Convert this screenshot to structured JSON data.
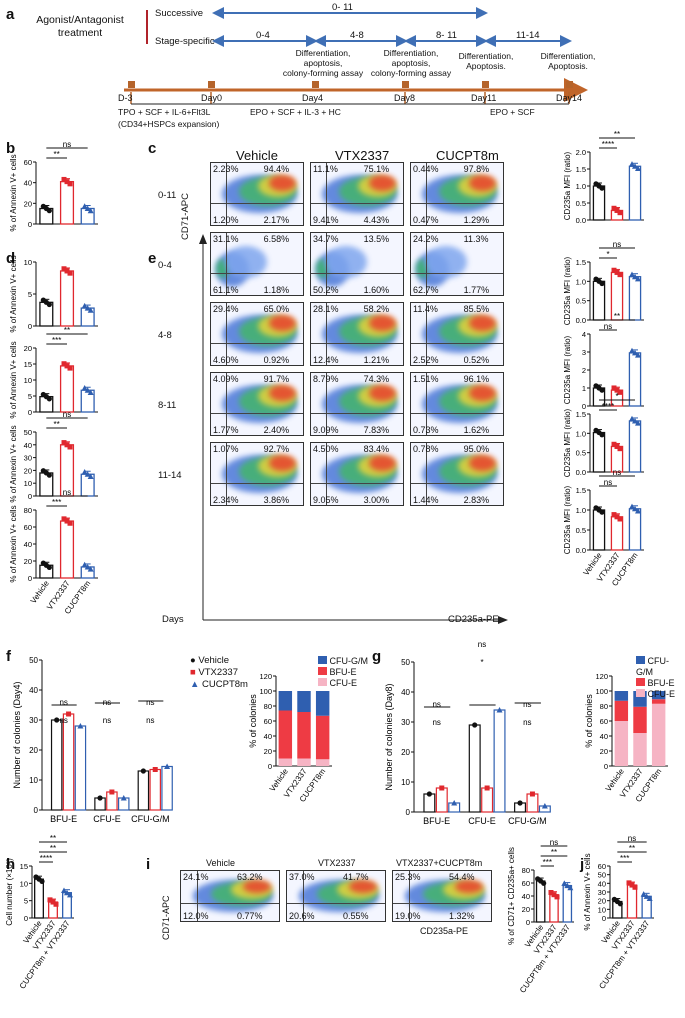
{
  "panels": {
    "a": "a",
    "b": "b",
    "c": "c",
    "d": "d",
    "e": "e",
    "f": "f",
    "g": "g",
    "h": "h",
    "i": "i",
    "j": "j"
  },
  "timeline": {
    "treatment_label": "Agonist/Antagonist treatment",
    "successive": "Successive",
    "stage_specific": "Stage-specific",
    "range_successive": "0- 11",
    "ranges": [
      "0-4",
      "4-8",
      "8- 11",
      "11-14"
    ],
    "day_labels": [
      "D-3",
      "Day0",
      "Day4",
      "Day8",
      "Day11",
      "Day14"
    ],
    "annotations": [
      "Differentiation,\napoptosis,\ncolony-forming assay",
      "Differentiation,\napoptosis,\ncolony-forming assay",
      "Differentiation,\nApoptosis.",
      "Differentiation,\nApoptosis."
    ],
    "media": [
      "TPO + SCF + IL-6+Flt3L",
      "(CD34+HSPCs expansion)",
      "EPO + SCF + IL-3 + HC",
      "EPO + SCF"
    ]
  },
  "flow": {
    "col_headers": [
      "Vehicle",
      "VTX2337",
      "CUCPT8m"
    ],
    "rows": [
      {
        "label": "0-11",
        "q": [
          [
            "2.23%",
            "94.4%",
            "1.20%",
            "2.17%"
          ],
          [
            "11.1%",
            "75.1%",
            "9.41%",
            "4.43%"
          ],
          [
            "0.44%",
            "97.8%",
            "0.47%",
            "1.29%"
          ]
        ]
      },
      {
        "label": "0-4",
        "q": [
          [
            "31.1%",
            "6.58%",
            "61.1%",
            "1.18%"
          ],
          [
            "34.7%",
            "13.5%",
            "50.2%",
            "1.60%"
          ],
          [
            "24.2%",
            "11.3%",
            "62.7%",
            "1.77%"
          ]
        ]
      },
      {
        "label": "4-8",
        "q": [
          [
            "29.4%",
            "65.0%",
            "4.60%",
            "0.92%"
          ],
          [
            "28.1%",
            "58.2%",
            "12.4%",
            "1.21%"
          ],
          [
            "11.4%",
            "85.5%",
            "2.52%",
            "0.52%"
          ]
        ]
      },
      {
        "label": "8-11",
        "q": [
          [
            "4.09%",
            "91.7%",
            "1.77%",
            "2.40%"
          ],
          [
            "8.79%",
            "74.3%",
            "9.09%",
            "7.83%"
          ],
          [
            "1.51%",
            "96.1%",
            "0.73%",
            "1.62%"
          ]
        ]
      },
      {
        "label": "11-14",
        "q": [
          [
            "1.07%",
            "92.7%",
            "2.34%",
            "3.86%"
          ],
          [
            "4.50%",
            "83.4%",
            "9.05%",
            "3.00%"
          ],
          [
            "0.78%",
            "95.0%",
            "1.44%",
            "2.83%"
          ]
        ]
      }
    ],
    "y_axis": "CD71-APC",
    "x_axis": "CD235a-PE",
    "days": "Days"
  },
  "flow_i": {
    "headers": [
      "Vehicle",
      "VTX2337",
      "VTX2337+CUCPT8m"
    ],
    "q": [
      [
        "24.1%",
        "63.2%",
        "12.0%",
        "0.77%"
      ],
      [
        "37.0%",
        "41.7%",
        "20.6%",
        "0.55%"
      ],
      [
        "25.3%",
        "54.4%",
        "19.0%",
        "1.32%"
      ]
    ],
    "y_axis": "CD71-APC",
    "x_axis": "CD235a-PE"
  },
  "colors": {
    "vehicle": "#111111",
    "vtx": "#e0282e",
    "cucpt": "#2f5fb0",
    "cfu_gm": "#2f5fb0",
    "bfu_e": "#ee3b44",
    "cfu_e": "#f6b4c4"
  },
  "chart_data": [
    {
      "id": "b",
      "type": "bar",
      "ylabel": "% of Annexin V+ cells",
      "ylim": [
        0,
        60
      ],
      "yticks": [
        "0",
        "20",
        "40",
        "60"
      ],
      "categories": [
        "Vehicle",
        "VTX2337",
        "CUCPT8m"
      ],
      "values": [
        15,
        41,
        15
      ],
      "sig": [
        {
          "text": "**"
        },
        {
          "text": "ns"
        }
      ]
    },
    {
      "id": "d1",
      "type": "bar",
      "ylabel": "% of Annexin V+ cells",
      "ylim": [
        0,
        10
      ],
      "yticks": [
        "0",
        "5",
        "10"
      ],
      "categories": [
        "Vehicle",
        "VTX2337",
        "CUCPT8m"
      ],
      "values": [
        3.7,
        8.6,
        2.8
      ],
      "sig": []
    },
    {
      "id": "d2",
      "type": "bar",
      "ylabel": "% of Annexin V+ cells",
      "ylim": [
        0,
        20
      ],
      "yticks": [
        "0",
        "5",
        "10",
        "15",
        "20"
      ],
      "categories": [
        "Vehicle",
        "VTX2337",
        "CUCPT8m"
      ],
      "values": [
        4.8,
        14.4,
        6.8
      ],
      "sig": [
        {
          "text": "***"
        },
        {
          "text": "**"
        }
      ]
    },
    {
      "id": "d3",
      "type": "bar",
      "ylabel": "% of Annexin V+ cells",
      "ylim": [
        0,
        50
      ],
      "yticks": [
        "0",
        "10",
        "20",
        "30",
        "40",
        "50"
      ],
      "categories": [
        "Vehicle",
        "VTX2337",
        "CUCPT8m"
      ],
      "values": [
        18,
        40,
        17
      ],
      "sig": [
        {
          "text": "**"
        },
        {
          "text": "ns"
        }
      ]
    },
    {
      "id": "d4",
      "type": "bar",
      "ylabel": "% of Annexin V+ cells",
      "ylim": [
        0,
        80
      ],
      "yticks": [
        "0",
        "20",
        "40",
        "60",
        "80"
      ],
      "categories": [
        "Vehicle",
        "VTX2337",
        "CUCPT8m"
      ],
      "values": [
        15,
        67,
        13
      ],
      "sig": [
        {
          "text": "***"
        },
        {
          "text": "ns"
        }
      ]
    },
    {
      "id": "c1",
      "type": "bar",
      "ylabel": "CD235a MFI (ratio)",
      "ylim": [
        0,
        2.0
      ],
      "yticks": [
        "0.0",
        "0.5",
        "1.0",
        "1.5",
        "2.0"
      ],
      "categories": [
        "Vehicle",
        "VTX2337",
        "CUCPT8m"
      ],
      "values": [
        1.0,
        0.28,
        1.58
      ],
      "sig": [
        {
          "text": "****"
        },
        {
          "text": "**"
        }
      ]
    },
    {
      "id": "e1",
      "type": "bar",
      "ylabel": "CD235a MFI (ratio)",
      "ylim": [
        0,
        1.5
      ],
      "yticks": [
        "0.0",
        "0.5",
        "1.0",
        "1.5"
      ],
      "categories": [
        "Vehicle",
        "VTX2337",
        "CUCPT8m"
      ],
      "values": [
        1.0,
        1.23,
        1.12
      ],
      "sig": [
        {
          "text": "*"
        },
        {
          "text": "ns"
        }
      ]
    },
    {
      "id": "e2",
      "type": "bar",
      "ylabel": "CD235a MFI (ratio)",
      "ylim": [
        0,
        4
      ],
      "yticks": [
        "0",
        "1",
        "2",
        "3",
        "4"
      ],
      "categories": [
        "Vehicle",
        "VTX2337",
        "CUCPT8m"
      ],
      "values": [
        1.0,
        0.88,
        2.95
      ],
      "sig": [
        {
          "text": "ns"
        },
        {
          "text": "**"
        }
      ]
    },
    {
      "id": "e3",
      "type": "bar",
      "ylabel": "CD235a MFI (ratio)",
      "ylim": [
        0,
        1.5
      ],
      "yticks": [
        "0.0",
        "0.5",
        "1.0",
        "1.5"
      ],
      "categories": [
        "Vehicle",
        "VTX2337",
        "CUCPT8m"
      ],
      "values": [
        1.02,
        0.66,
        1.32
      ],
      "sig": [
        {
          "text": "****"
        },
        {
          "text": "*"
        }
      ]
    },
    {
      "id": "e4",
      "type": "bar",
      "ylabel": "CD235a MFI (ratio)",
      "ylim": [
        0,
        1.5
      ],
      "yticks": [
        "0.0",
        "0.5",
        "1.0",
        "1.5"
      ],
      "categories": [
        "Vehicle",
        "VTX2337",
        "CUCPT8m"
      ],
      "values": [
        1.0,
        0.83,
        1.03
      ],
      "sig": [
        {
          "text": "ns"
        },
        {
          "text": "ns"
        }
      ]
    },
    {
      "id": "f",
      "type": "bar",
      "ylabel": "Number of colonies (Day4)",
      "ylim": [
        0,
        50
      ],
      "yticks": [
        "0",
        "10",
        "20",
        "30",
        "40",
        "50"
      ],
      "categories": [
        "BFU-E",
        "CFU-E",
        "CFU-G/M"
      ],
      "series": [
        {
          "name": "Vehicle",
          "values": [
            30,
            4,
            13
          ]
        },
        {
          "name": "VTX2337",
          "values": [
            32,
            6,
            13.5
          ]
        },
        {
          "name": "CUCPT8m",
          "values": [
            28,
            4,
            14.5
          ]
        }
      ],
      "legend": [
        "Vehicle",
        "VTX2337",
        "CUCPT8m"
      ],
      "sig": [
        "ns",
        "ns",
        "ns",
        "ns",
        "ns",
        "ns"
      ]
    },
    {
      "id": "f_stack",
      "type": "bar",
      "ylabel": "% of colonies",
      "ylim": [
        0,
        120
      ],
      "yticks": [
        "0",
        "20",
        "40",
        "60",
        "80",
        "100",
        "120"
      ],
      "categories": [
        "Vehicle",
        "VTX2337",
        "CUCPT8m"
      ],
      "series": [
        {
          "name": "CFU-E",
          "values": [
            10,
            10,
            9
          ]
        },
        {
          "name": "BFU-E",
          "values": [
            64,
            62,
            58
          ]
        },
        {
          "name": "CFU-G/M",
          "values": [
            26,
            28,
            33
          ]
        }
      ],
      "legend": [
        "CFU-G/M",
        "BFU-E",
        "CFU-E"
      ]
    },
    {
      "id": "g",
      "type": "bar",
      "ylabel": "Number of colonies (Day8)",
      "ylim": [
        0,
        50
      ],
      "yticks": [
        "0",
        "10",
        "20",
        "30",
        "40",
        "50"
      ],
      "categories": [
        "BFU-E",
        "CFU-E",
        "CFU-G/M"
      ],
      "series": [
        {
          "name": "Vehicle",
          "values": [
            6,
            29,
            3
          ]
        },
        {
          "name": "VTX2337",
          "values": [
            8,
            8,
            6
          ]
        },
        {
          "name": "CUCPT8m",
          "values": [
            3,
            34,
            2
          ]
        }
      ],
      "sig": [
        "ns",
        "ns",
        "*",
        "ns",
        "ns",
        "ns"
      ]
    },
    {
      "id": "g_stack",
      "type": "bar",
      "ylabel": "% of colonies",
      "ylim": [
        0,
        120
      ],
      "yticks": [
        "0",
        "20",
        "40",
        "60",
        "80",
        "100",
        "120"
      ],
      "categories": [
        "Vehicle",
        "VTX2337",
        "CUCPT8m"
      ],
      "series": [
        {
          "name": "CFU-E",
          "values": [
            60,
            44,
            83
          ]
        },
        {
          "name": "BFU-E",
          "values": [
            27,
            35,
            6
          ]
        },
        {
          "name": "CFU-G/M",
          "values": [
            13,
            21,
            11
          ]
        }
      ],
      "legend": [
        "CFU-G/M",
        "BFU-E",
        "CFU-E"
      ]
    },
    {
      "id": "h",
      "type": "bar",
      "ylabel": "Cell number (×10⁵)",
      "ylim": [
        0,
        15
      ],
      "yticks": [
        "0",
        "5",
        "10",
        "15"
      ],
      "categories": [
        "Vehicle",
        "VTX2337",
        "CUCPT8m + VTX2337"
      ],
      "values": [
        11.2,
        4.6,
        7.3
      ],
      "sig": [
        {
          "text": "****"
        },
        {
          "text": "**"
        },
        {
          "text": "**"
        }
      ]
    },
    {
      "id": "i_bar",
      "type": "bar",
      "ylabel": "% of CD71+ CD235a+ cells",
      "ylim": [
        0,
        80
      ],
      "yticks": [
        "0",
        "20",
        "40",
        "60",
        "80"
      ],
      "categories": [
        "Vehicle",
        "VTX2337",
        "CUCPT8m + VTX2337"
      ],
      "values": [
        63,
        42,
        56
      ],
      "sig": [
        {
          "text": "***"
        },
        {
          "text": "**"
        },
        {
          "text": "ns"
        }
      ]
    },
    {
      "id": "j",
      "type": "bar",
      "ylabel": "% of Annexin V+ cells",
      "ylim": [
        0,
        60
      ],
      "yticks": [
        "0",
        "10",
        "20",
        "30",
        "40",
        "50",
        "60"
      ],
      "categories": [
        "Vehicle",
        "VTX2337",
        "CUCPT8m + VTX2337"
      ],
      "values": [
        19,
        38,
        25
      ],
      "sig": [
        {
          "text": "***"
        },
        {
          "text": "**"
        },
        {
          "text": "ns"
        }
      ]
    }
  ]
}
